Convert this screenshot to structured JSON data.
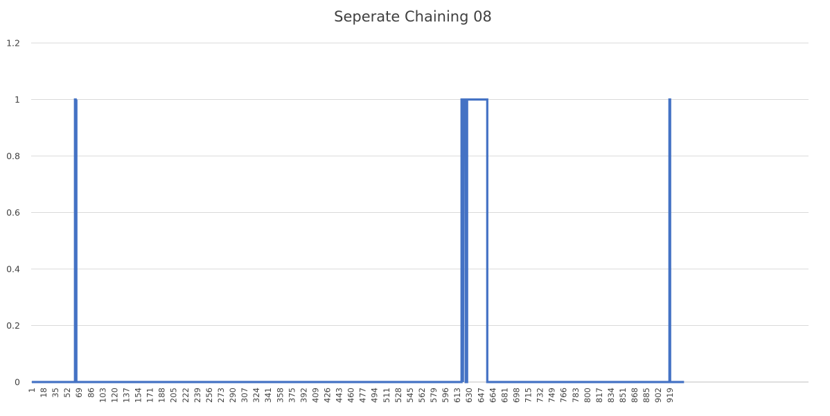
{
  "chart_data": {
    "type": "line",
    "title": "Seperate Chaining 08",
    "xlabel": "",
    "ylabel": "",
    "ylim": [
      0,
      1.2
    ],
    "yticks": [
      "0",
      "0.2",
      "0.4",
      "0.6",
      "0.8",
      "1",
      "1.2"
    ],
    "xticks": [
      "1",
      "18",
      "35",
      "52",
      "69",
      "86",
      "103",
      "120",
      "137",
      "154",
      "171",
      "188",
      "205",
      "222",
      "239",
      "256",
      "273",
      "290",
      "307",
      "324",
      "341",
      "358",
      "375",
      "392",
      "409",
      "426",
      "443",
      "460",
      "477",
      "494",
      "511",
      "528",
      "545",
      "562",
      "579",
      "596",
      "613",
      "630",
      "647",
      "664",
      "681",
      "698",
      "715",
      "732",
      "749",
      "766",
      "783",
      "800",
      "817",
      "834",
      "851",
      "868",
      "885",
      "902",
      "919"
    ],
    "xlim": [
      1,
      939
    ],
    "grid": true,
    "legend": "none",
    "series": [
      {
        "name": "",
        "color": "#4472c4",
        "points": [
          [
            1,
            0
          ],
          [
            63,
            0
          ],
          [
            63,
            1
          ],
          [
            64,
            1
          ],
          [
            64,
            0
          ],
          [
            65,
            1
          ],
          [
            65,
            0
          ],
          [
            619,
            0
          ],
          [
            619,
            1
          ],
          [
            621,
            1
          ],
          [
            621,
            0
          ],
          [
            622,
            1
          ],
          [
            625,
            1
          ],
          [
            625,
            0
          ],
          [
            627,
            0
          ],
          [
            627,
            1
          ],
          [
            656,
            1
          ],
          [
            656,
            0
          ],
          [
            918,
            0
          ],
          [
            918,
            1
          ],
          [
            919,
            1
          ],
          [
            919,
            0
          ],
          [
            939,
            0
          ]
        ]
      }
    ]
  }
}
